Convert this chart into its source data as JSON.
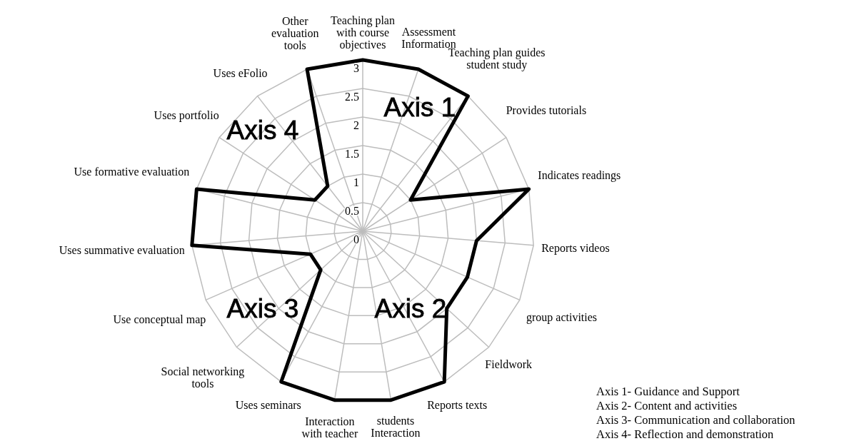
{
  "chart_data": {
    "type": "radar",
    "categories": [
      "Teaching plan with course objectives",
      "Assessment Information",
      "Teaching plan guides student study",
      "Provides tutorials",
      "Indicates readings",
      "Reports videos",
      "group activities",
      "Fieldwork",
      "Reports texts",
      "students Interaction",
      "Interaction with teacher",
      "Uses seminars",
      "Social networking tools",
      "Use conceptual map",
      "Uses summative evaluation",
      "Use formative evaluation",
      "Uses portfolio",
      "Uses eFolio",
      "Other evaluation tools"
    ],
    "series": [
      {
        "color": "#000000",
        "values": [
          3,
          3,
          3,
          1,
          3,
          2,
          2,
          2,
          3,
          3,
          3,
          3,
          1,
          1,
          3,
          3,
          1,
          1,
          3
        ]
      }
    ],
    "ylim": [
      0,
      3
    ],
    "yticks": [
      0,
      0.5,
      1,
      1.5,
      2,
      2.5,
      3
    ],
    "grid": true,
    "marker": "none",
    "line_style": "solid",
    "annotations": [
      "Axis 1",
      "Axis 2",
      "Axis 3",
      "Axis 4",
      "Axis 1- Guidance and Support",
      "Axis 2- Content and activities",
      "Axis 3- Communication and collaboration",
      "Axis 4- Reflection and demonstration"
    ]
  }
}
